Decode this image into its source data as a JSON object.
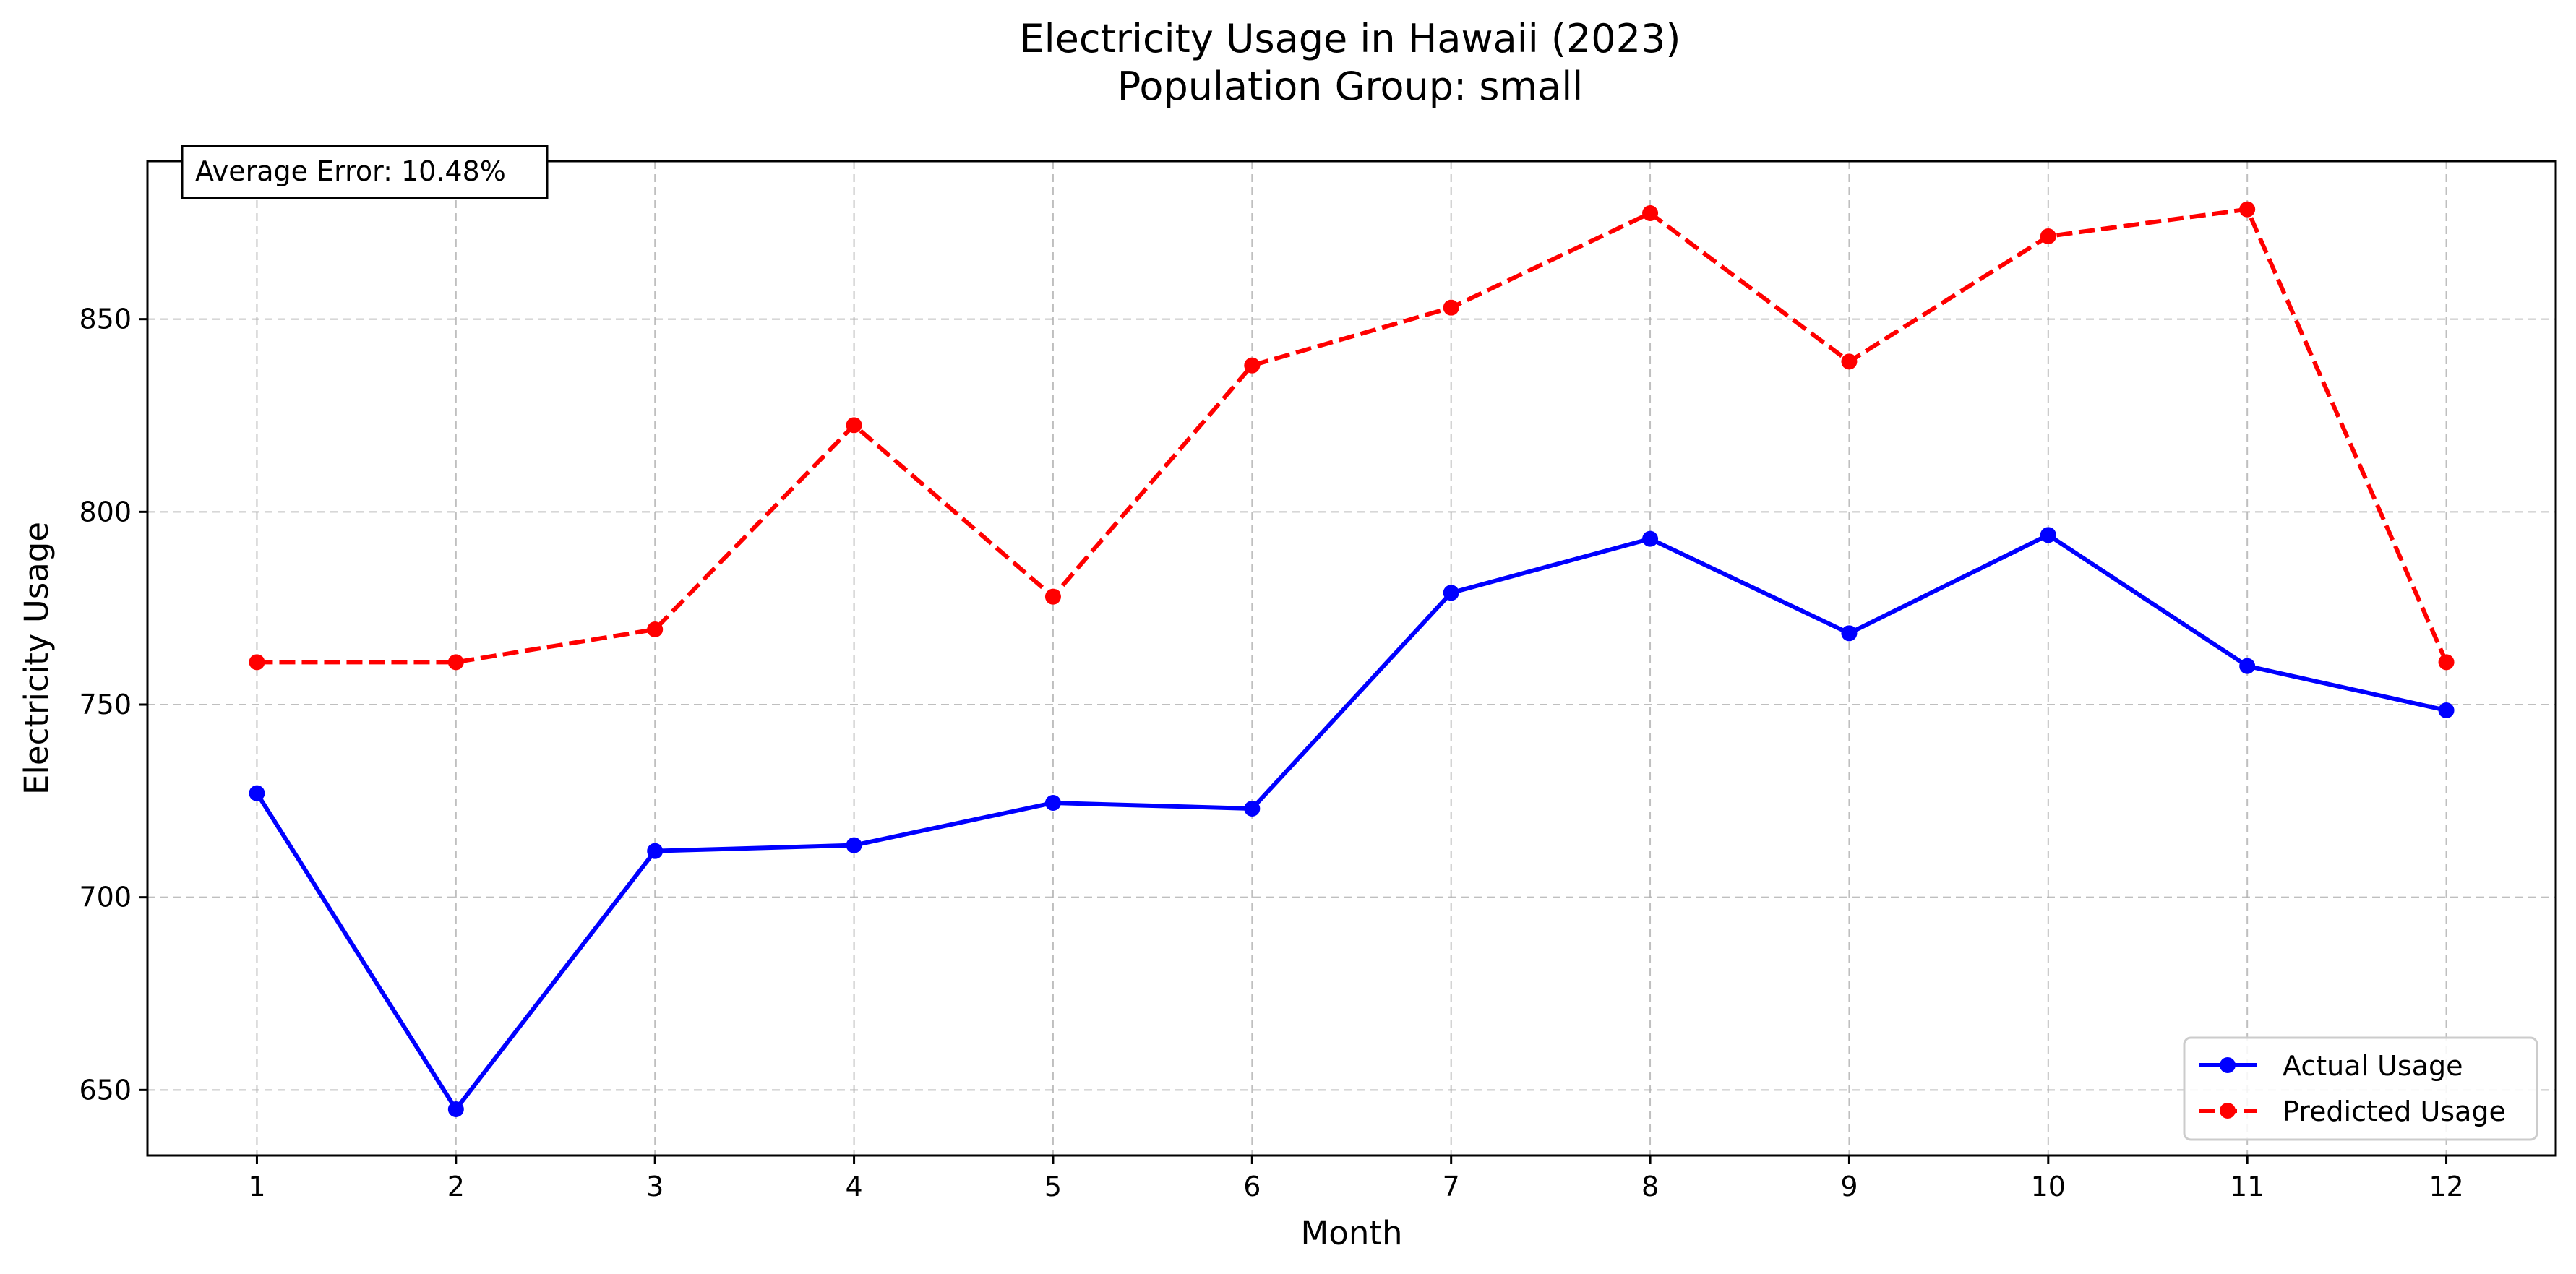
{
  "chart_data": {
    "type": "line",
    "title": "Electricity Usage in Hawaii (2023)",
    "subtitle": "Population Group: small",
    "xlabel": "Month",
    "ylabel": "Electricity Usage",
    "x": [
      1,
      2,
      3,
      4,
      5,
      6,
      7,
      8,
      9,
      10,
      11,
      12
    ],
    "xlim": [
      0.45,
      12.55
    ],
    "ylim": [
      633,
      891
    ],
    "yticks": [
      650,
      700,
      750,
      800,
      850
    ],
    "grid": true,
    "legend_position": "bottom-right",
    "annotation": "Average Error: 10.48%",
    "series": [
      {
        "name": "Actual Usage",
        "color": "#0000ff",
        "style": "solid",
        "values": [
          727,
          645,
          712,
          713.5,
          724.5,
          723,
          779,
          793,
          768.5,
          794,
          760,
          748.5
        ]
      },
      {
        "name": "Predicted Usage",
        "color": "#ff0000",
        "style": "dashed",
        "values": [
          761,
          761,
          769.5,
          822.5,
          778,
          838,
          853,
          877.5,
          839,
          871.5,
          878.5,
          761
        ]
      }
    ]
  }
}
